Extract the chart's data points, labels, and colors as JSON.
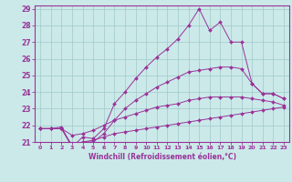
{
  "xlabel": "Windchill (Refroidissement éolien,°C)",
  "bg_color": "#cbe9e9",
  "grid_color": "#a0c8c8",
  "line_color": "#993399",
  "xmin": -0.5,
  "xmax": 23.5,
  "ymin": 21.0,
  "ymax": 29.2,
  "yticks": [
    21,
    22,
    23,
    24,
    25,
    26,
    27,
    28,
    29
  ],
  "xticks": [
    0,
    1,
    2,
    3,
    4,
    5,
    6,
    7,
    8,
    9,
    10,
    11,
    12,
    13,
    14,
    15,
    16,
    17,
    18,
    19,
    20,
    21,
    22,
    23
  ],
  "series": [
    [
      21.8,
      21.8,
      21.9,
      20.7,
      21.3,
      21.2,
      21.8,
      23.3,
      24.0,
      24.8,
      25.5,
      26.1,
      26.6,
      27.2,
      28.0,
      29.0,
      27.7,
      28.2,
      27.0,
      27.0,
      24.5,
      23.9,
      23.9,
      23.6
    ],
    [
      21.8,
      21.8,
      21.8,
      20.7,
      21.0,
      21.0,
      21.5,
      22.3,
      23.0,
      23.5,
      23.9,
      24.3,
      24.6,
      24.9,
      25.2,
      25.3,
      25.4,
      25.5,
      25.5,
      25.4,
      24.5,
      23.9,
      23.9,
      23.6
    ],
    [
      21.8,
      21.8,
      21.8,
      21.4,
      21.5,
      21.7,
      22.0,
      22.3,
      22.5,
      22.7,
      22.9,
      23.1,
      23.2,
      23.3,
      23.5,
      23.6,
      23.7,
      23.7,
      23.7,
      23.7,
      23.6,
      23.5,
      23.4,
      23.2
    ],
    [
      21.8,
      21.8,
      21.8,
      20.8,
      21.0,
      21.1,
      21.3,
      21.5,
      21.6,
      21.7,
      21.8,
      21.9,
      22.0,
      22.1,
      22.2,
      22.3,
      22.4,
      22.5,
      22.6,
      22.7,
      22.8,
      22.9,
      23.0,
      23.1
    ]
  ]
}
